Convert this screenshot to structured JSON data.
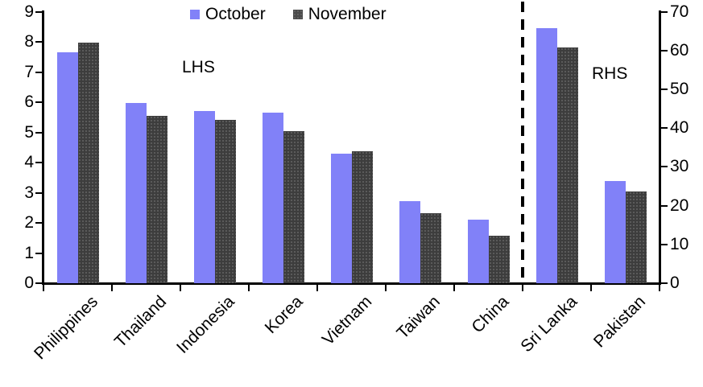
{
  "chart_data": {
    "type": "bar",
    "title": "",
    "legend_position": "top-center",
    "grid": false,
    "categories": [
      "Philippines",
      "Thailand",
      "Indonesia",
      "Korea",
      "Vietnam",
      "Taiwan",
      "China",
      "Sri Lanka",
      "Pakistan"
    ],
    "series": [
      {
        "name": "October",
        "color": "#8181f8",
        "values": [
          7.65,
          5.97,
          5.71,
          5.66,
          4.3,
          2.72,
          2.1,
          65.7,
          26.4
        ]
      },
      {
        "name": "November",
        "color": "#3d3d3d",
        "values": [
          7.97,
          5.55,
          5.42,
          5.04,
          4.37,
          2.33,
          1.58,
          60.8,
          23.6
        ]
      }
    ],
    "category_axis": [
      "lhs",
      "lhs",
      "lhs",
      "lhs",
      "lhs",
      "lhs",
      "lhs",
      "rhs",
      "rhs"
    ],
    "left_axis": {
      "label": "LHS",
      "min": 0,
      "max": 9,
      "ticks": [
        0,
        1,
        2,
        3,
        4,
        5,
        6,
        7,
        8,
        9
      ]
    },
    "right_axis": {
      "label": "RHS",
      "min": 0,
      "max": 70,
      "ticks": [
        0,
        10,
        20,
        30,
        40,
        50,
        60,
        70
      ]
    },
    "separator": {
      "style": "dashed-vertical-line",
      "between": [
        "China",
        "Sri Lanka"
      ]
    }
  }
}
